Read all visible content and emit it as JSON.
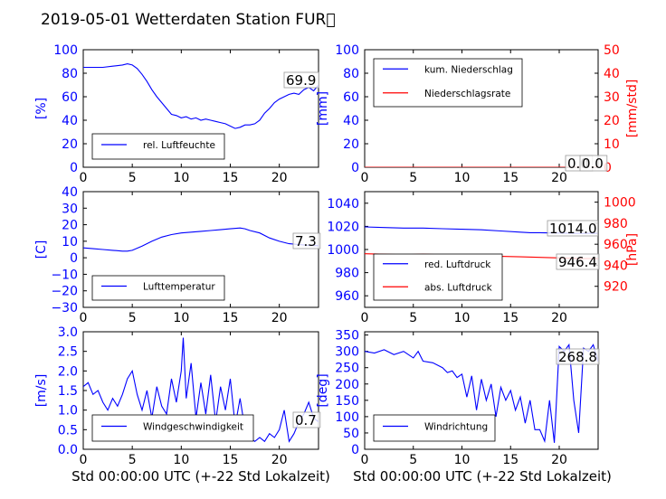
{
  "title": "2019-05-01 Wetterdaten Station FUR\u0000",
  "colors": {
    "primary": "#0000ff",
    "secondary": "#ff0000",
    "axis": "#000000",
    "legend_border": "#000000",
    "value_box": "#999999"
  },
  "shared_xlabel": "Std 00:00:00 UTC (+-22 Std Lokalzeit)",
  "chart_data": [
    {
      "id": "humidity",
      "type": "line",
      "xlim": [
        0,
        24
      ],
      "x_ticks": [
        "0",
        "5",
        "10",
        "15",
        "20"
      ],
      "ylim": [
        0,
        100
      ],
      "y_ticks": [
        "0",
        "20",
        "40",
        "60",
        "80",
        "100"
      ],
      "ylabel": "[%]",
      "legend_location": "lower-left",
      "series": [
        {
          "name": "rel. Luftfeuchte",
          "color": "#0000ff",
          "x": [
            0,
            1,
            2,
            3,
            4,
            4.5,
            5,
            5.5,
            6,
            6.5,
            7,
            7.5,
            8,
            8.5,
            9,
            9.5,
            10,
            10.5,
            11,
            11.5,
            12,
            12.5,
            13,
            13.5,
            14,
            14.5,
            15,
            15.5,
            16,
            16.5,
            17,
            17.5,
            18,
            18.5,
            19,
            19.5,
            20,
            20.5,
            21,
            21.5,
            22,
            22.5,
            23,
            23.5,
            24
          ],
          "y": [
            85,
            85,
            85,
            86,
            87,
            88,
            87,
            84,
            79,
            73,
            66,
            60,
            55,
            50,
            45,
            44,
            42,
            43,
            41,
            42,
            40,
            41,
            40,
            39,
            38,
            37,
            35,
            33,
            34,
            36,
            36,
            37,
            40,
            46,
            50,
            55,
            58,
            60,
            62,
            63,
            62,
            66,
            68,
            65,
            70
          ]
        }
      ],
      "value_labels": [
        "69.9"
      ]
    },
    {
      "id": "precipitation",
      "type": "line",
      "xlim": [
        0,
        24
      ],
      "x_ticks": [
        "0",
        "5",
        "10",
        "15",
        "20"
      ],
      "ylim": [
        0,
        100
      ],
      "y_ticks": [
        "0",
        "20",
        "40",
        "60",
        "80",
        "100"
      ],
      "ylabel": "[mm]",
      "ylim_right": [
        0,
        50
      ],
      "y_ticks_right": [
        "0",
        "10",
        "20",
        "30",
        "40",
        "50"
      ],
      "ylabel_right": "[mm/std]",
      "legend_location": "upper-left",
      "series": [
        {
          "name": "kum. Niederschlag",
          "color": "#0000ff",
          "axis": "left",
          "x": [
            0,
            24
          ],
          "y": [
            0,
            0
          ]
        },
        {
          "name": "Niederschlagsrate",
          "color": "#ff0000",
          "axis": "right",
          "x": [
            0,
            24
          ],
          "y": [
            0,
            0
          ]
        }
      ],
      "value_labels": [
        "0.0",
        "0.0"
      ]
    },
    {
      "id": "temperature",
      "type": "line",
      "xlim": [
        0,
        24
      ],
      "x_ticks": [
        "0",
        "5",
        "10",
        "15",
        "20"
      ],
      "ylim": [
        -30,
        40
      ],
      "y_ticks": [
        "−30",
        "−20",
        "−10",
        "0",
        "10",
        "20",
        "30",
        "40"
      ],
      "ylabel": "[C]",
      "legend_location": "lower-left",
      "series": [
        {
          "name": "Lufttemperatur",
          "color": "#0000ff",
          "x": [
            0,
            1,
            2,
            3,
            4,
            4.5,
            5,
            6,
            7,
            8,
            9,
            10,
            11,
            12,
            13,
            14,
            15,
            16,
            16.5,
            17,
            18,
            19,
            20,
            21,
            22,
            23,
            24
          ],
          "y": [
            6,
            5.5,
            5,
            4.5,
            4,
            4,
            4.5,
            7,
            10,
            12.5,
            14,
            15,
            15.5,
            16,
            16.5,
            17,
            17.5,
            18,
            17.5,
            16.5,
            15,
            12,
            10,
            8.5,
            8,
            7.5,
            7.3
          ]
        }
      ],
      "value_labels": [
        "7.3"
      ]
    },
    {
      "id": "pressure",
      "type": "line",
      "xlim": [
        0,
        24
      ],
      "x_ticks": [
        "0",
        "5",
        "10",
        "15",
        "20"
      ],
      "ylim": [
        950,
        1050
      ],
      "y_ticks": [
        "960",
        "980",
        "1000",
        "1020",
        "1040"
      ],
      "ylim_right": [
        900,
        1010
      ],
      "y_ticks_right": [
        "920",
        "940",
        "960",
        "980",
        "1000"
      ],
      "ylabel_right": "[hPa]",
      "legend_location": "lower-left",
      "series": [
        {
          "name": "red. Luftdruck",
          "color": "#0000ff",
          "axis": "left",
          "x": [
            0,
            2,
            4,
            6,
            8,
            10,
            12,
            14,
            16,
            17,
            18,
            20,
            22,
            24
          ],
          "y": [
            1019.5,
            1019,
            1018.5,
            1018.5,
            1018,
            1017.5,
            1017,
            1016,
            1015,
            1014.5,
            1014.5,
            1014.2,
            1014,
            1014
          ]
        },
        {
          "name": "abs. Luftdruck",
          "color": "#ff0000",
          "axis": "right",
          "x": [
            0,
            2,
            4,
            6,
            8,
            10,
            12,
            14,
            16,
            18,
            20,
            22,
            24
          ],
          "y": [
            951,
            950.5,
            950,
            950.5,
            950,
            949.5,
            949,
            948.5,
            948,
            947.5,
            947,
            946.5,
            946.4
          ]
        }
      ],
      "value_labels": [
        "1014.0",
        "946.4"
      ]
    },
    {
      "id": "windspeed",
      "type": "line",
      "xlim": [
        0,
        24
      ],
      "x_ticks": [
        "0",
        "5",
        "10",
        "15",
        "20"
      ],
      "ylim": [
        0,
        3
      ],
      "y_ticks": [
        "0.0",
        "0.5",
        "1.0",
        "1.5",
        "2.0",
        "2.5",
        "3.0"
      ],
      "ylabel": "[m/s]",
      "legend_location": "lower-left",
      "series": [
        {
          "name": "Windgeschwindigkeit",
          "color": "#0000ff",
          "x": [
            0,
            0.5,
            1,
            1.5,
            2,
            2.5,
            3,
            3.5,
            4,
            4.5,
            5,
            5.5,
            6,
            6.5,
            7,
            7.5,
            8,
            8.5,
            9,
            9.5,
            10,
            10.2,
            10.5,
            11,
            11.5,
            12,
            12.5,
            13,
            13.5,
            14,
            14.5,
            15,
            15.5,
            16,
            16.5,
            17,
            17.5,
            18,
            18.5,
            19,
            19.5,
            20,
            20.5,
            21,
            21.5,
            22,
            22.5,
            23,
            23.5,
            24
          ],
          "y": [
            1.6,
            1.7,
            1.4,
            1.5,
            1.2,
            1.0,
            1.3,
            1.1,
            1.4,
            1.8,
            2.0,
            1.4,
            1.0,
            1.5,
            0.8,
            1.6,
            1.1,
            0.9,
            1.8,
            1.2,
            2.0,
            2.85,
            1.3,
            2.2,
            0.8,
            1.7,
            0.9,
            1.9,
            0.7,
            1.6,
            1.0,
            1.8,
            0.6,
            1.3,
            0.5,
            0.3,
            0.2,
            0.3,
            0.2,
            0.4,
            0.3,
            0.5,
            1.0,
            0.2,
            0.4,
            0.7,
            0.9,
            1.2,
            0.8,
            0.7
          ]
        }
      ],
      "value_labels": [
        "0.7"
      ]
    },
    {
      "id": "winddirection",
      "type": "line",
      "xlim": [
        0,
        24
      ],
      "x_ticks": [
        "0",
        "5",
        "10",
        "15",
        "20"
      ],
      "ylim": [
        0,
        360
      ],
      "y_ticks": [
        "0",
        "50",
        "100",
        "150",
        "200",
        "250",
        "300",
        "350"
      ],
      "ylabel": "[deg]",
      "legend_location": "lower-left",
      "series": [
        {
          "name": "Windrichtung",
          "color": "#0000ff",
          "x": [
            0,
            1,
            2,
            3,
            4,
            5,
            5.5,
            6,
            7,
            8,
            8.5,
            9,
            9.5,
            10,
            10.5,
            11,
            11.5,
            12,
            12.5,
            13,
            13.5,
            14,
            14.5,
            15,
            15.5,
            16,
            16.5,
            17,
            17.5,
            18,
            18.5,
            19,
            19.5,
            20,
            20.5,
            21,
            21.5,
            22,
            22.5,
            23,
            23.5,
            24
          ],
          "y": [
            300,
            295,
            305,
            290,
            300,
            280,
            300,
            270,
            265,
            250,
            235,
            240,
            220,
            230,
            160,
            225,
            120,
            215,
            150,
            200,
            100,
            190,
            150,
            180,
            120,
            160,
            80,
            150,
            60,
            60,
            25,
            150,
            20,
            315,
            300,
            320,
            150,
            50,
            310,
            300,
            320,
            268.8
          ]
        }
      ],
      "value_labels": [
        "268.8"
      ]
    }
  ]
}
